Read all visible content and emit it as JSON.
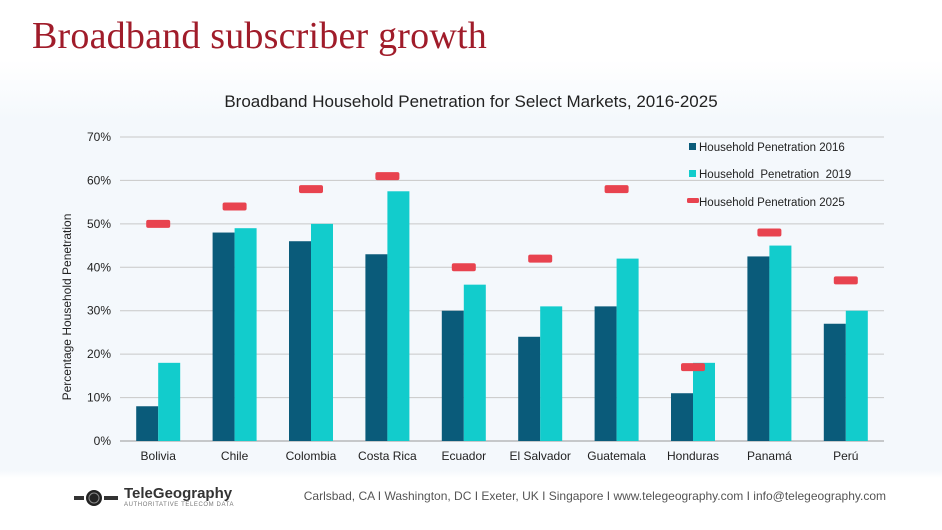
{
  "slide_title": "Broadband subscriber growth",
  "footer": {
    "logo_name": "TeleGeography",
    "logo_tagline": "AUTHORITATIVE TELECOM DATA",
    "contact": "Carlsbad, CA I Washington, DC I Exeter, UK I Singapore I www.telegeography.com I info@telegeography.com"
  },
  "colors": {
    "title": "#a01c2a",
    "series_2016": "#0a5b7a",
    "series_2019": "#12cccc",
    "series_2025": "#e8434f"
  },
  "chart_data": {
    "type": "bar",
    "title": "Broadband Household Penetration for Select Markets, 2016-2025",
    "ylabel": "Percentage Household Penetration",
    "xlabel": "",
    "ylim": [
      0,
      70
    ],
    "yticks": [
      "0%",
      "10%",
      "20%",
      "30%",
      "40%",
      "50%",
      "60%",
      "70%"
    ],
    "grid": true,
    "legend_position": "top-right",
    "categories": [
      "Bolivia",
      "Chile",
      "Colombia",
      "Costa Rica",
      "Ecuador",
      "El Salvador",
      "Guatemala",
      "Honduras",
      "Panamá",
      "Perú"
    ],
    "series": [
      {
        "name": "Household Penetration 2016",
        "type": "bar",
        "values": [
          8,
          48,
          46,
          43,
          30,
          24,
          31,
          11,
          42.5,
          27
        ]
      },
      {
        "name": "Household  Penetration  2019",
        "type": "bar",
        "values": [
          18,
          49,
          50,
          57.5,
          36,
          31,
          42,
          18,
          45,
          30
        ]
      },
      {
        "name": "Household Penetration 2025",
        "type": "marker",
        "values": [
          50,
          54,
          58,
          61,
          40,
          42,
          58,
          17,
          48,
          37
        ]
      }
    ]
  }
}
